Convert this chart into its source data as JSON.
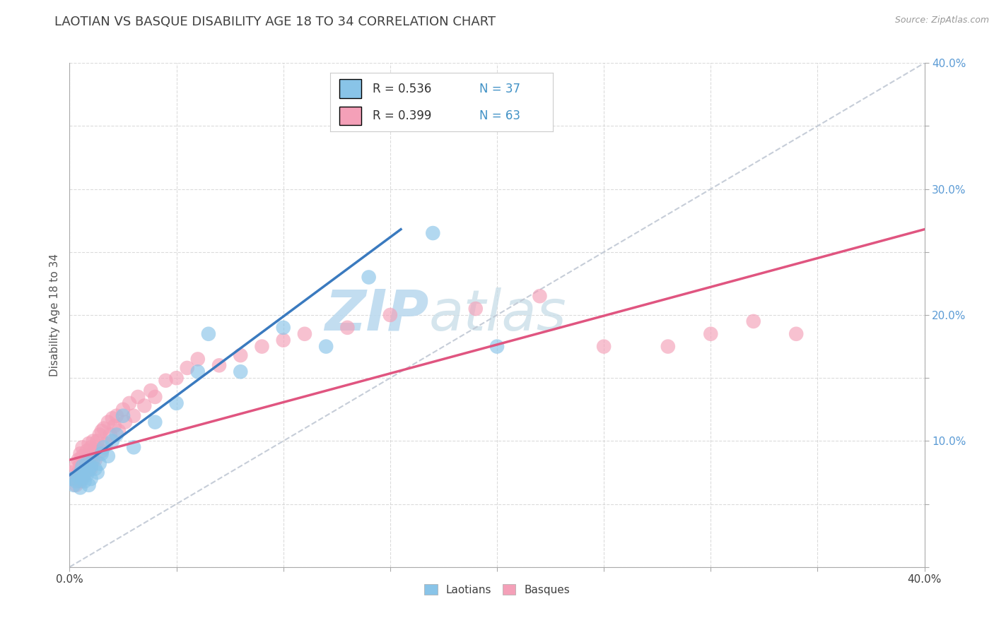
{
  "title": "LAOTIAN VS BASQUE DISABILITY AGE 18 TO 34 CORRELATION CHART",
  "source_text": "Source: ZipAtlas.com",
  "ylabel": "Disability Age 18 to 34",
  "xmin": 0.0,
  "xmax": 0.4,
  "ymin": 0.0,
  "ymax": 0.4,
  "background_color": "#ffffff",
  "grid_color": "#cccccc",
  "title_color": "#404040",
  "title_fontsize": 13,
  "watermark_zip": "ZIP",
  "watermark_atlas": "atlas",
  "watermark_color_zip": "#c5dff0",
  "watermark_color_atlas": "#a8c8e0",
  "legend_R1": "R = 0.536",
  "legend_N1": "N = 37",
  "legend_R2": "R = 0.399",
  "legend_N2": "N = 63",
  "blue_color": "#89c4e8",
  "pink_color": "#f4a0b8",
  "blue_line_color": "#3a7abf",
  "pink_line_color": "#e05580",
  "diagonal_color": "#c0c8d4",
  "blue_line_x0": 0.0,
  "blue_line_y0": 0.073,
  "blue_line_x1": 0.155,
  "blue_line_y1": 0.268,
  "pink_line_x0": 0.0,
  "pink_line_y0": 0.085,
  "pink_line_x1": 0.4,
  "pink_line_y1": 0.268,
  "laotian_x": [
    0.001,
    0.002,
    0.003,
    0.004,
    0.005,
    0.005,
    0.006,
    0.006,
    0.007,
    0.007,
    0.008,
    0.008,
    0.009,
    0.009,
    0.01,
    0.01,
    0.011,
    0.012,
    0.013,
    0.014,
    0.015,
    0.016,
    0.018,
    0.02,
    0.022,
    0.025,
    0.03,
    0.04,
    0.05,
    0.06,
    0.065,
    0.08,
    0.1,
    0.12,
    0.14,
    0.17,
    0.2
  ],
  "laotian_y": [
    0.07,
    0.065,
    0.068,
    0.072,
    0.075,
    0.063,
    0.07,
    0.08,
    0.075,
    0.068,
    0.073,
    0.082,
    0.077,
    0.065,
    0.08,
    0.07,
    0.085,
    0.078,
    0.075,
    0.082,
    0.09,
    0.095,
    0.088,
    0.1,
    0.105,
    0.12,
    0.095,
    0.115,
    0.13,
    0.155,
    0.185,
    0.155,
    0.19,
    0.175,
    0.23,
    0.265,
    0.175
  ],
  "basque_x": [
    0.001,
    0.002,
    0.003,
    0.003,
    0.004,
    0.004,
    0.005,
    0.005,
    0.005,
    0.006,
    0.006,
    0.006,
    0.007,
    0.007,
    0.008,
    0.008,
    0.009,
    0.009,
    0.01,
    0.01,
    0.01,
    0.011,
    0.011,
    0.012,
    0.012,
    0.013,
    0.014,
    0.015,
    0.015,
    0.016,
    0.017,
    0.018,
    0.019,
    0.02,
    0.021,
    0.022,
    0.023,
    0.025,
    0.026,
    0.028,
    0.03,
    0.032,
    0.035,
    0.038,
    0.04,
    0.045,
    0.05,
    0.055,
    0.06,
    0.07,
    0.08,
    0.09,
    0.1,
    0.11,
    0.13,
    0.15,
    0.19,
    0.22,
    0.25,
    0.28,
    0.3,
    0.32,
    0.34
  ],
  "basque_y": [
    0.075,
    0.07,
    0.08,
    0.065,
    0.085,
    0.075,
    0.082,
    0.09,
    0.068,
    0.088,
    0.078,
    0.095,
    0.073,
    0.085,
    0.092,
    0.08,
    0.088,
    0.098,
    0.085,
    0.095,
    0.078,
    0.09,
    0.1,
    0.095,
    0.085,
    0.1,
    0.105,
    0.092,
    0.108,
    0.11,
    0.098,
    0.115,
    0.105,
    0.118,
    0.112,
    0.12,
    0.108,
    0.125,
    0.115,
    0.13,
    0.12,
    0.135,
    0.128,
    0.14,
    0.135,
    0.148,
    0.15,
    0.158,
    0.165,
    0.16,
    0.168,
    0.175,
    0.18,
    0.185,
    0.19,
    0.2,
    0.205,
    0.215,
    0.175,
    0.175,
    0.185,
    0.195,
    0.185
  ]
}
